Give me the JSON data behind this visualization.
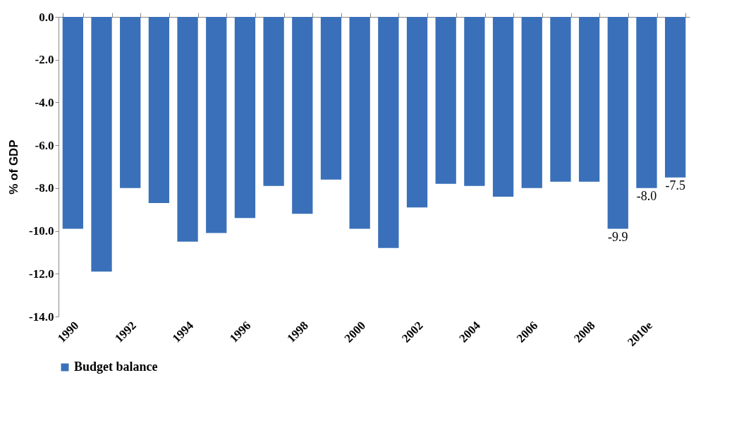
{
  "chart_data": {
    "type": "bar",
    "ylabel": "% of GDP",
    "categories": [
      "1990",
      null,
      "1992",
      null,
      "1994",
      null,
      "1996",
      null,
      "1998",
      null,
      "2000",
      null,
      "2002",
      null,
      "2004",
      null,
      "2006",
      null,
      "2008",
      null,
      "2010e",
      null
    ],
    "series": [
      {
        "name": "Budget balance",
        "color": "#3a70b9",
        "values": [
          -9.9,
          -11.9,
          -8.0,
          -8.7,
          -10.5,
          -10.1,
          -9.4,
          -7.9,
          -9.2,
          -7.6,
          -9.9,
          -10.8,
          -8.9,
          -7.8,
          -7.9,
          -8.4,
          -8.0,
          -7.7,
          -7.7,
          -9.9,
          -8.0,
          -7.5
        ],
        "value_labels": [
          null,
          null,
          null,
          null,
          null,
          null,
          null,
          null,
          null,
          null,
          null,
          null,
          null,
          null,
          null,
          null,
          null,
          null,
          null,
          "-9.9",
          "-8.0",
          "-7.5"
        ]
      }
    ],
    "ylim": [
      -14.0,
      0.0
    ],
    "yticks": [
      {
        "value": 0,
        "label": "0.0"
      },
      {
        "value": -2,
        "label": "-2.0"
      },
      {
        "value": -4,
        "label": "-4.0"
      },
      {
        "value": -6,
        "label": "-6.0"
      },
      {
        "value": -8,
        "label": "-8.0"
      },
      {
        "value": -10,
        "label": "-10.0"
      },
      {
        "value": -12,
        "label": "-12.0"
      },
      {
        "value": -14,
        "label": "-14.0"
      }
    ],
    "grid": false,
    "legend": "bottom"
  }
}
